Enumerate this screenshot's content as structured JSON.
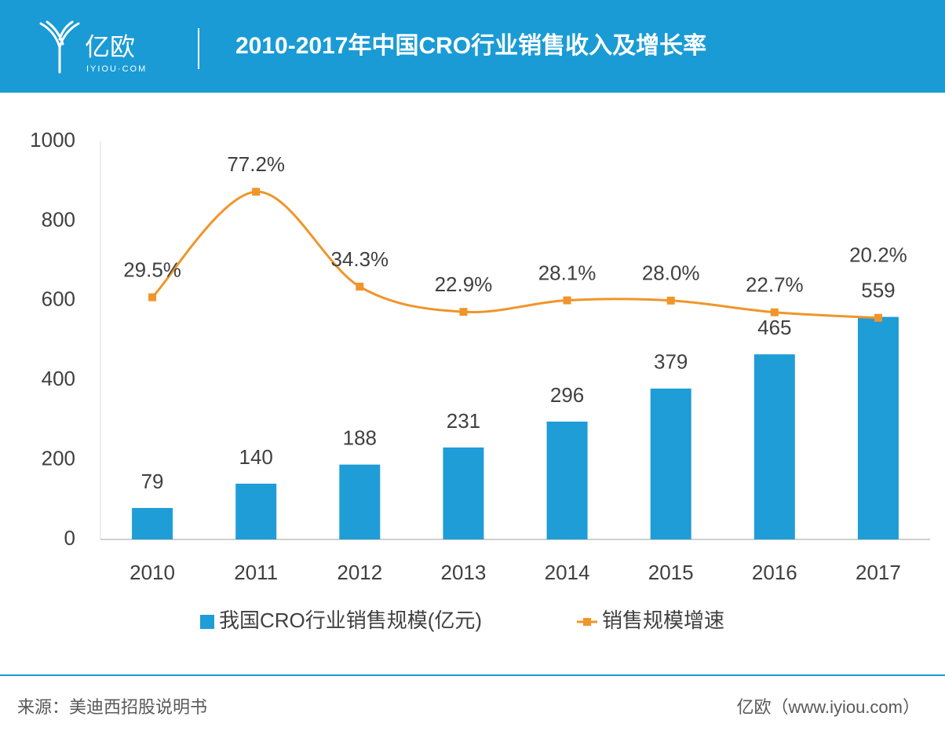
{
  "header": {
    "logo": "亿欧",
    "logo_sub": "IYIOU·COM"
  },
  "chart_data": {
    "type": "combo",
    "title": "2010-2017年中国CRO行业销售收入及增长率",
    "categories": [
      "2010",
      "2011",
      "2012",
      "2013",
      "2014",
      "2015",
      "2016",
      "2017"
    ],
    "ylim": [
      0,
      1000
    ],
    "yticks": [
      0,
      200,
      400,
      600,
      800,
      1000
    ],
    "y2lim": [
      -80,
      100
    ],
    "grid": false,
    "smooth": true,
    "legend": "bottom",
    "series": [
      {
        "name": "我国CRO行业销售规模(亿元)",
        "type": "bar",
        "color": "#1f9dd7",
        "values": [
          79,
          140,
          188,
          231,
          296,
          379,
          465,
          559
        ]
      },
      {
        "name": "销售规模增速",
        "type": "line",
        "axis": "y2",
        "color": "#f0952a",
        "values": [
          29.5,
          77.2,
          34.3,
          22.9,
          28.1,
          28.0,
          22.7,
          20.2
        ],
        "value_labels": [
          "29.5%",
          "77.2%",
          "34.3%",
          "22.9%",
          "28.1%",
          "28.0%",
          "22.7%",
          "20.2%"
        ]
      }
    ]
  },
  "footer": {
    "source": "来源：美迪西招股说明书",
    "credit": "亿欧（www.iyiou.com）"
  }
}
